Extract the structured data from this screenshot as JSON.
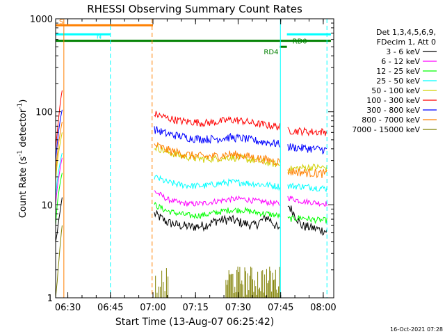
{
  "chart_data": {
    "type": "line",
    "title": "RHESSI Observing Summary Count Rates",
    "xlabel": "Start Time (13-Aug-07 06:25:42)",
    "ylabel": "Count Rate (s-1 detector-1)",
    "y_scale": "log",
    "ylim": [
      1,
      1000
    ],
    "xlim_minutes": [
      0,
      98
    ],
    "x_ticks": [
      {
        "label": "06:30",
        "value": 4.3
      },
      {
        "label": "06:45",
        "value": 19.3
      },
      {
        "label": "07:00",
        "value": 34.3
      },
      {
        "label": "07:15",
        "value": 49.3
      },
      {
        "label": "07:30",
        "value": 64.3
      },
      {
        "label": "07:45",
        "value": 79.3
      },
      {
        "label": "08:00",
        "value": 94.3
      }
    ],
    "y_ticks": [
      {
        "label": "1",
        "value": 1
      },
      {
        "label": "10",
        "value": 10
      },
      {
        "label": "100",
        "value": 100
      },
      {
        "label": "1000",
        "value": 1000
      }
    ],
    "legend": {
      "placement": "right",
      "header": [
        "Det 1,3,4,5,6,9,",
        "FDecim 1, Att 0"
      ]
    },
    "timestamp": "16-Oct-2021 07:28",
    "series": [
      {
        "name": "3 - 6 keV",
        "color": "#000000",
        "pre": [
          4,
          5,
          7,
          9,
          12
        ],
        "segA": [
          8,
          6.5,
          6,
          5.8,
          6,
          6.8,
          7,
          6.4,
          6,
          7.4,
          5.2
        ],
        "segB": [
          10,
          6,
          5.6,
          5.2
        ]
      },
      {
        "name": "6 - 12 keV",
        "color": "#ff00ff",
        "pre": [
          10,
          15,
          20,
          26,
          32
        ],
        "segA": [
          14,
          11.5,
          10.5,
          10.2,
          10.4,
          11,
          11.5,
          11.6,
          11,
          10.7,
          10.2
        ],
        "segB": [
          12,
          11,
          10.6,
          10.3
        ]
      },
      {
        "name": "12 - 25 keV",
        "color": "#00ff00",
        "pre": [
          6,
          10,
          14,
          18,
          22
        ],
        "segA": [
          10,
          8.6,
          8,
          7.6,
          7.8,
          8.3,
          8.8,
          8.8,
          8.3,
          8,
          7.6
        ],
        "segB": [
          7,
          7.3,
          6.9,
          6.8
        ]
      },
      {
        "name": "25 - 50 keV",
        "color": "#00ffff",
        "pre": [
          12,
          18,
          24,
          30,
          36
        ],
        "segA": [
          20,
          17.5,
          16.5,
          16,
          16,
          16.8,
          17.5,
          17.4,
          16.8,
          16.3,
          15.8
        ],
        "segB": [
          16,
          15.8,
          15.4,
          15
        ]
      },
      {
        "name": "50 - 100 keV",
        "color": "#d0d000",
        "pre": [
          18,
          28,
          38,
          48,
          60
        ],
        "segA": [
          42,
          37,
          34,
          32,
          31,
          31.5,
          32.5,
          31.5,
          30,
          28.5,
          27
        ],
        "segB": [
          24,
          25,
          25.5,
          25
        ]
      },
      {
        "name": "100 - 300 keV",
        "color": "#ff0000",
        "pre": [
          40,
          60,
          90,
          130,
          170
        ],
        "segA": [
          95,
          86,
          80,
          78,
          76,
          78,
          82,
          80,
          75,
          72,
          69
        ],
        "segB": [
          63,
          62,
          61,
          61
        ]
      },
      {
        "name": "300 - 800 keV",
        "color": "#0000ff",
        "pre": [
          30,
          45,
          65,
          85,
          105
        ],
        "segA": [
          65,
          58,
          55,
          52,
          51,
          51.5,
          53,
          52,
          49,
          47,
          45
        ],
        "segB": [
          42,
          41,
          40,
          39
        ]
      },
      {
        "name": "800 - 7000 keV",
        "color": "#ff8000",
        "pre": [
          22,
          34,
          48,
          62,
          78
        ],
        "segA": [
          44,
          39,
          36,
          34,
          33,
          33.5,
          35,
          34,
          32,
          30.5,
          29
        ],
        "segB": [
          23,
          22.5,
          22,
          21.5
        ]
      },
      {
        "name": "7000 - 15000 keV",
        "color": "#808000",
        "pre": [
          1,
          1.5,
          2.5,
          4,
          6
        ]
      }
    ],
    "segments": {
      "pre": [
        0.0,
        2.3
      ],
      "segA": [
        34.8,
        79.0
      ],
      "segB": [
        81.8,
        95.6
      ]
    },
    "attenuator_bars": {
      "S": {
        "label": "S",
        "color": "#ff8000",
        "from": 0,
        "to": 34.3,
        "level": 850
      },
      "N": {
        "label": "N",
        "color": "#00ffff",
        "from": 0,
        "to": 19.3,
        "level": 680
      },
      "RD0": {
        "label": "RD0",
        "color": "#00ffff",
        "from": 81.5,
        "to": 97,
        "level": 680
      },
      "RD4": {
        "label": "RD4",
        "color": "#008000",
        "from": 79,
        "to": 81.5,
        "level": 500
      },
      "green": {
        "label": "",
        "color": "#008000",
        "from": 0,
        "to": 97,
        "level": 580
      }
    },
    "vlines": [
      {
        "x": 2.9,
        "color": "#ff8000",
        "dashed": false
      },
      {
        "x": 19.3,
        "color": "#00ffff",
        "dashed": true
      },
      {
        "x": 34.0,
        "color": "#ff8000",
        "dashed": true
      },
      {
        "x": 79.2,
        "color": "#00ffff",
        "dashed": false
      },
      {
        "x": 95.6,
        "color": "#00ffff",
        "dashed": true
      }
    ]
  }
}
